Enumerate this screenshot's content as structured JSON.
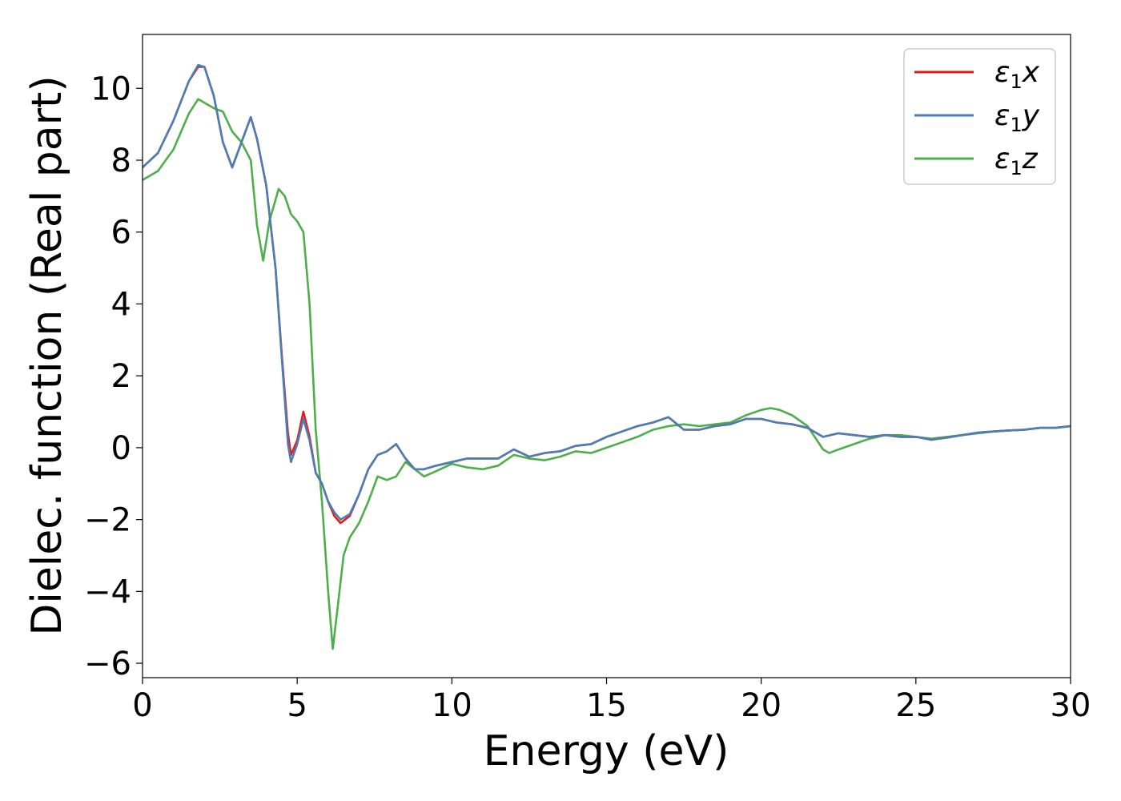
{
  "chart_data": {
    "type": "line",
    "title": "",
    "xlabel": "Energy (eV)",
    "ylabel": "Dielec. function (Real part)",
    "xlim": [
      0,
      30
    ],
    "ylim": [
      -6.4,
      11.5
    ],
    "xticks": [
      0,
      5,
      10,
      15,
      20,
      25,
      30
    ],
    "xtick_labels": [
      "0",
      "5",
      "10",
      "15",
      "20",
      "25",
      "30"
    ],
    "yticks": [
      -6,
      -4,
      -2,
      0,
      2,
      4,
      6,
      8,
      10
    ],
    "ytick_labels": [
      "−6",
      "−4",
      "−2",
      "0",
      "2",
      "4",
      "6",
      "8",
      "10"
    ],
    "grid": false,
    "legend_position": "top-right",
    "series": [
      {
        "name": "ε1x",
        "label_main": "ε",
        "label_sub": "1",
        "label_suffix": "x",
        "color": "#e41a1c",
        "x": [
          0,
          0.5,
          1.0,
          1.5,
          1.8,
          2.0,
          2.3,
          2.6,
          2.9,
          3.2,
          3.5,
          3.7,
          4.0,
          4.3,
          4.5,
          4.7,
          4.8,
          5.0,
          5.2,
          5.4,
          5.6,
          5.8,
          6.0,
          6.2,
          6.4,
          6.7,
          7.0,
          7.3,
          7.6,
          7.9,
          8.2,
          8.5,
          8.8,
          9.1,
          9.5,
          10.0,
          10.5,
          11.0,
          11.5,
          12.0,
          12.5,
          13.0,
          13.5,
          14.0,
          14.5,
          15.0,
          15.5,
          16.0,
          16.5,
          17.0,
          17.5,
          18.0,
          18.5,
          19.0,
          19.5,
          20.0,
          20.5,
          21.0,
          21.5,
          22.0,
          22.5,
          23.0,
          23.5,
          24.0,
          24.5,
          25.0,
          25.5,
          26.0,
          26.5,
          27.0,
          27.5,
          28.0,
          28.5,
          29.0,
          29.5,
          30.0
        ],
        "y": [
          7.8,
          8.2,
          9.1,
          10.2,
          10.6,
          10.6,
          9.8,
          8.5,
          7.8,
          8.5,
          9.2,
          8.6,
          7.3,
          5.0,
          2.6,
          0.4,
          -0.2,
          0.2,
          1.0,
          0.3,
          -0.7,
          -1.0,
          -1.5,
          -1.9,
          -2.1,
          -1.9,
          -1.3,
          -0.6,
          -0.2,
          -0.1,
          0.1,
          -0.3,
          -0.6,
          -0.6,
          -0.5,
          -0.4,
          -0.3,
          -0.3,
          -0.3,
          -0.05,
          -0.25,
          -0.15,
          -0.1,
          0.05,
          0.1,
          0.3,
          0.45,
          0.6,
          0.7,
          0.85,
          0.5,
          0.5,
          0.6,
          0.65,
          0.8,
          0.8,
          0.7,
          0.65,
          0.55,
          0.3,
          0.4,
          0.35,
          0.3,
          0.35,
          0.3,
          0.3,
          0.22,
          0.28,
          0.35,
          0.42,
          0.45,
          0.48,
          0.5,
          0.55,
          0.55,
          0.6
        ]
      },
      {
        "name": "ε1y",
        "label_main": "ε",
        "label_sub": "1",
        "label_suffix": "y",
        "color": "#4a7eb4",
        "x": [
          0,
          0.5,
          1.0,
          1.5,
          1.8,
          2.0,
          2.3,
          2.6,
          2.9,
          3.2,
          3.5,
          3.7,
          4.0,
          4.3,
          4.5,
          4.7,
          4.8,
          5.0,
          5.2,
          5.4,
          5.6,
          5.8,
          6.0,
          6.2,
          6.4,
          6.7,
          7.0,
          7.3,
          7.6,
          7.9,
          8.2,
          8.5,
          8.8,
          9.1,
          9.5,
          10.0,
          10.5,
          11.0,
          11.5,
          12.0,
          12.5,
          13.0,
          13.5,
          14.0,
          14.5,
          15.0,
          15.5,
          16.0,
          16.5,
          17.0,
          17.5,
          18.0,
          18.5,
          19.0,
          19.5,
          20.0,
          20.5,
          21.0,
          21.5,
          22.0,
          22.5,
          23.0,
          23.5,
          24.0,
          24.5,
          25.0,
          25.5,
          26.0,
          26.5,
          27.0,
          27.5,
          28.0,
          28.5,
          29.0,
          29.5,
          30.0
        ],
        "y": [
          7.8,
          8.2,
          9.1,
          10.2,
          10.65,
          10.6,
          9.8,
          8.5,
          7.8,
          8.5,
          9.2,
          8.6,
          7.3,
          5.0,
          2.5,
          0.1,
          -0.4,
          0.1,
          0.8,
          0.2,
          -0.7,
          -1.0,
          -1.5,
          -1.8,
          -2.0,
          -1.85,
          -1.3,
          -0.6,
          -0.2,
          -0.1,
          0.1,
          -0.3,
          -0.6,
          -0.6,
          -0.5,
          -0.4,
          -0.3,
          -0.3,
          -0.3,
          -0.05,
          -0.25,
          -0.15,
          -0.1,
          0.05,
          0.1,
          0.3,
          0.45,
          0.6,
          0.7,
          0.85,
          0.5,
          0.5,
          0.6,
          0.65,
          0.8,
          0.8,
          0.7,
          0.65,
          0.55,
          0.3,
          0.4,
          0.35,
          0.3,
          0.35,
          0.3,
          0.3,
          0.22,
          0.28,
          0.35,
          0.42,
          0.45,
          0.48,
          0.5,
          0.55,
          0.55,
          0.6
        ]
      },
      {
        "name": "ε1z",
        "label_main": "ε",
        "label_sub": "1",
        "label_suffix": "z",
        "color": "#4daf4a",
        "x": [
          0,
          0.5,
          1.0,
          1.5,
          1.8,
          2.0,
          2.3,
          2.6,
          2.9,
          3.2,
          3.5,
          3.7,
          3.9,
          4.1,
          4.4,
          4.6,
          4.8,
          5.0,
          5.2,
          5.4,
          5.6,
          5.8,
          6.0,
          6.15,
          6.3,
          6.5,
          6.7,
          7.0,
          7.3,
          7.6,
          7.9,
          8.2,
          8.5,
          8.8,
          9.1,
          9.5,
          10.0,
          10.5,
          11.0,
          11.5,
          12.0,
          12.5,
          13.0,
          13.5,
          14.0,
          14.5,
          15.0,
          15.5,
          16.0,
          16.5,
          17.0,
          17.5,
          18.0,
          18.5,
          19.0,
          19.5,
          20.0,
          20.3,
          20.6,
          21.0,
          21.5,
          22.0,
          22.2,
          22.5,
          23.0,
          23.5,
          24.0,
          24.5,
          25.0,
          25.5,
          26.0,
          26.5,
          27.0,
          27.5,
          28.0,
          28.5,
          29.0,
          29.5,
          30.0
        ],
        "y": [
          7.45,
          7.7,
          8.3,
          9.3,
          9.7,
          9.6,
          9.45,
          9.35,
          8.8,
          8.5,
          8.0,
          6.2,
          5.2,
          6.3,
          7.2,
          7.0,
          6.5,
          6.3,
          6.0,
          4.0,
          0.5,
          -1.5,
          -4.0,
          -5.6,
          -4.5,
          -3.0,
          -2.5,
          -2.1,
          -1.5,
          -0.8,
          -0.9,
          -0.8,
          -0.4,
          -0.6,
          -0.8,
          -0.65,
          -0.45,
          -0.55,
          -0.6,
          -0.5,
          -0.2,
          -0.3,
          -0.35,
          -0.25,
          -0.1,
          -0.15,
          0.0,
          0.15,
          0.3,
          0.5,
          0.6,
          0.65,
          0.6,
          0.65,
          0.7,
          0.9,
          1.05,
          1.1,
          1.05,
          0.9,
          0.6,
          -0.05,
          -0.15,
          -0.05,
          0.1,
          0.25,
          0.35,
          0.35,
          0.3,
          0.25,
          0.3,
          0.35,
          0.4,
          0.45,
          0.48,
          0.5,
          0.55,
          0.55,
          0.6
        ]
      }
    ]
  }
}
